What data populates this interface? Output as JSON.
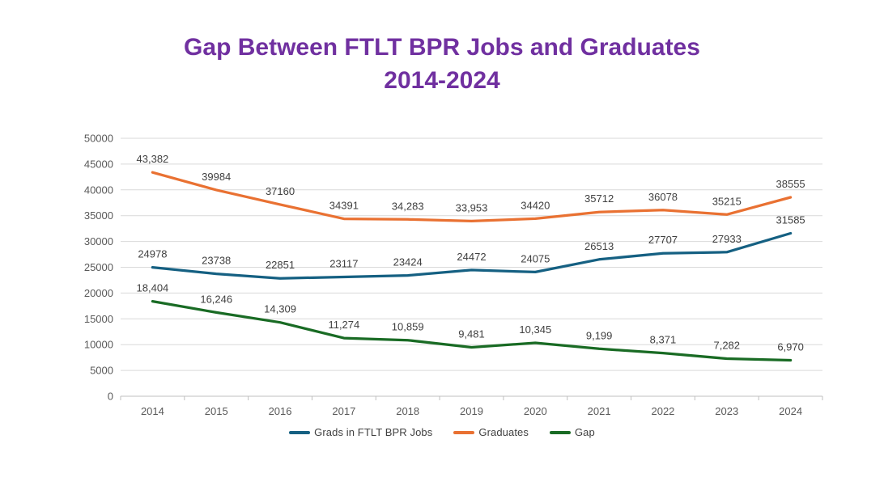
{
  "title": {
    "line1": "Gap Between FTLT BPR Jobs and Graduates",
    "line2": "2014-2024",
    "color": "#7030A0"
  },
  "chart_data": {
    "type": "line",
    "title": "Gap Between FTLT BPR Jobs and Graduates",
    "subtitle": "2014-2024",
    "categories": [
      "2014",
      "2015",
      "2016",
      "2017",
      "2018",
      "2019",
      "2020",
      "2021",
      "2022",
      "2023",
      "2024"
    ],
    "series": [
      {
        "name": "Grads in FTLT BPR Jobs",
        "color": "#156082",
        "values": [
          24978,
          23738,
          22851,
          23117,
          23424,
          24472,
          24075,
          26513,
          27707,
          27933,
          31585
        ],
        "labels": [
          "24978",
          "23738",
          "22851",
          "23117",
          "23424",
          "24472",
          "24075",
          "26513",
          "27707",
          "27933",
          "31585"
        ]
      },
      {
        "name": "Graduates",
        "color": "#E97132",
        "values": [
          43382,
          39984,
          37160,
          34391,
          34283,
          33953,
          34420,
          35712,
          36078,
          35215,
          38555
        ],
        "labels": [
          "43,382",
          "39984",
          "37160",
          "34391",
          "34,283",
          "33,953",
          "34420",
          "35712",
          "36078",
          "35215",
          "38555"
        ]
      },
      {
        "name": "Gap",
        "color": "#196B24",
        "values": [
          18404,
          16246,
          14309,
          11274,
          10859,
          9481,
          10345,
          9199,
          8371,
          7282,
          6970
        ],
        "labels": [
          "18,404",
          "16,246",
          "14,309",
          "11,274",
          "10,859",
          "9,481",
          "10,345",
          "9,199",
          "8,371",
          "7,282",
          "6,970"
        ]
      }
    ],
    "y_axis": {
      "min": 0,
      "max": 50000,
      "step": 5000,
      "tick_labels": [
        "0",
        "5000",
        "10000",
        "15000",
        "20000",
        "25000",
        "30000",
        "35000",
        "40000",
        "45000",
        "50000"
      ]
    },
    "legend": {
      "position": "bottom",
      "entries": [
        "Grads in FTLT BPR Jobs",
        "Graduates",
        "Gap"
      ]
    },
    "grid": true,
    "styles": {
      "gridline_color": "#D9D9D9",
      "axis_line_color": "#BFBFBF",
      "axis_label_color": "#595959",
      "data_label_color": "#404040"
    }
  }
}
